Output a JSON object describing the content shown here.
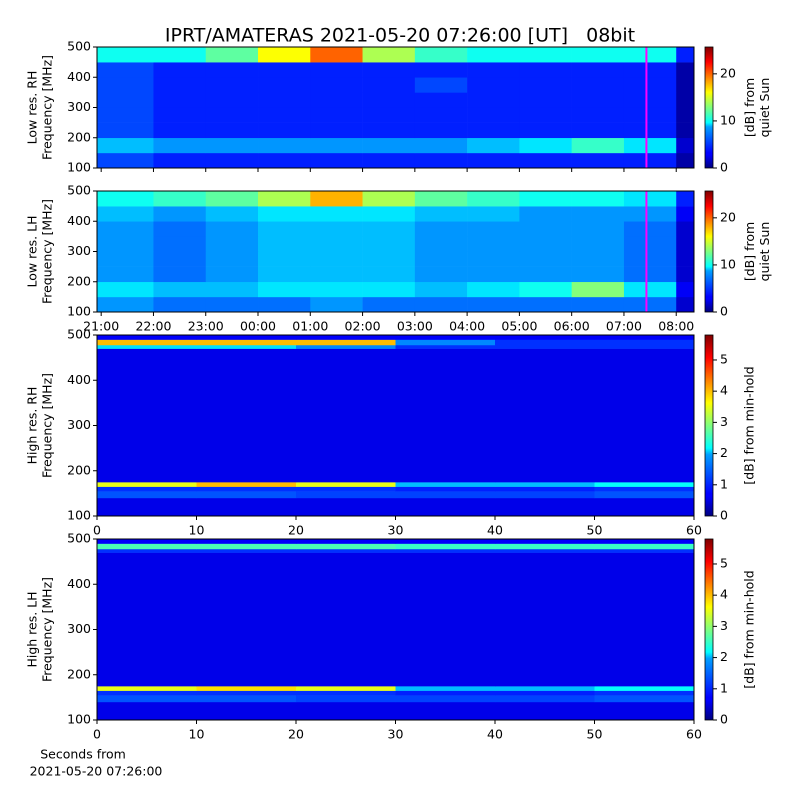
{
  "chart_data": [
    {
      "type": "heatmap",
      "title": "IPRT/AMATERAS 2021-05-20 07:26:00 [UT]   08bit",
      "ylabel": [
        "Low res. RH",
        "Frequency [MHz]"
      ],
      "colorbar_label": [
        "[dB] from",
        "quiet Sun"
      ],
      "xlim": [
        20.92,
        32.34
      ],
      "xticks": [
        21,
        22,
        23,
        24,
        25,
        26,
        27,
        28,
        29,
        30,
        31,
        32
      ],
      "xticklabels": false,
      "ylim": [
        100,
        500
      ],
      "yticks": [
        100,
        200,
        300,
        400,
        500
      ],
      "clim": [
        0,
        25.7
      ],
      "cticks": [
        0,
        10,
        20
      ],
      "colormap": "jet",
      "xbins": [
        20.92,
        22,
        23,
        24,
        25,
        26,
        27,
        28,
        29,
        30,
        31,
        32,
        32.34
      ],
      "ybins": [
        100,
        150,
        200,
        250,
        300,
        350,
        400,
        450,
        500
      ],
      "z": [
        [
          5,
          4,
          4,
          4,
          4,
          4,
          4,
          4,
          4,
          4,
          4,
          1
        ],
        [
          8,
          7,
          7,
          7,
          7,
          7,
          7,
          8,
          9,
          11,
          9,
          2
        ],
        [
          5,
          4,
          4,
          4,
          4,
          4,
          4,
          4,
          4,
          4,
          4,
          1
        ],
        [
          5,
          4,
          4,
          4,
          4,
          4,
          4,
          4,
          4,
          4,
          4,
          1
        ],
        [
          5,
          4,
          4,
          4,
          4,
          4,
          4,
          4,
          4,
          4,
          4,
          1
        ],
        [
          5,
          4,
          4,
          4,
          4,
          4,
          5,
          4,
          4,
          4,
          4,
          1
        ],
        [
          5,
          4,
          4,
          4,
          4,
          4,
          4,
          4,
          4,
          4,
          4,
          1
        ],
        [
          10,
          10,
          12,
          16,
          20,
          14,
          11,
          10,
          10,
          10,
          10,
          4
        ]
      ],
      "vlines": [
        31.43
      ],
      "vline_color": "#ff00ff"
    },
    {
      "type": "heatmap",
      "ylabel": [
        "Low res. LH",
        "Frequency [MHz]"
      ],
      "colorbar_label": [
        "[dB] from",
        "quiet Sun"
      ],
      "xlim": [
        20.92,
        32.34
      ],
      "xticks": [
        {
          "value": 21,
          "label": "21:00"
        },
        {
          "value": 22,
          "label": "22:00"
        },
        {
          "value": 23,
          "label": "23:00"
        },
        {
          "value": 24,
          "label": "00:00"
        },
        {
          "value": 25,
          "label": "01:00"
        },
        {
          "value": 26,
          "label": "02:00"
        },
        {
          "value": 27,
          "label": "03:00"
        },
        {
          "value": 28,
          "label": "04:00"
        },
        {
          "value": 29,
          "label": "05:00"
        },
        {
          "value": 30,
          "label": "06:00"
        },
        {
          "value": 31,
          "label": "07:00"
        },
        {
          "value": 32,
          "label": "08:00"
        }
      ],
      "ylim": [
        100,
        500
      ],
      "yticks": [
        100,
        200,
        300,
        400,
        500
      ],
      "clim": [
        0,
        25.7
      ],
      "cticks": [
        0,
        10,
        20
      ],
      "colormap": "jet",
      "xbins": [
        20.92,
        22,
        23,
        24,
        25,
        26,
        27,
        28,
        29,
        30,
        31,
        32,
        32.34
      ],
      "ybins": [
        100,
        150,
        200,
        250,
        300,
        350,
        400,
        450,
        500
      ],
      "z": [
        [
          7,
          6,
          6,
          6,
          7,
          6,
          6,
          6,
          6,
          6,
          6,
          2
        ],
        [
          9,
          8,
          8,
          9,
          9,
          9,
          8,
          9,
          10,
          13,
          9,
          3
        ],
        [
          7,
          6,
          7,
          8,
          8,
          8,
          7,
          7,
          7,
          7,
          6,
          2
        ],
        [
          7,
          6,
          7,
          8,
          8,
          8,
          7,
          7,
          7,
          7,
          6,
          2
        ],
        [
          7,
          6,
          7,
          8,
          8,
          8,
          7,
          7,
          7,
          7,
          6,
          2
        ],
        [
          7,
          6,
          7,
          8,
          8,
          8,
          7,
          7,
          7,
          7,
          6,
          2
        ],
        [
          8,
          7,
          8,
          9,
          9,
          9,
          8,
          8,
          7,
          7,
          7,
          3
        ],
        [
          10,
          11,
          12,
          14,
          18,
          14,
          12,
          11,
          10,
          10,
          9,
          4
        ]
      ],
      "vlines": [
        31.43
      ],
      "vline_color": "#ff00ff"
    },
    {
      "type": "heatmap",
      "ylabel": [
        "High res. RH",
        "Frequency [MHz]"
      ],
      "colorbar_label": [
        "[dB] from min-hold"
      ],
      "xlim": [
        0,
        60
      ],
      "xticks": [
        0,
        10,
        20,
        30,
        40,
        50,
        60
      ],
      "ylim": [
        100,
        500
      ],
      "yticks": [
        100,
        200,
        300,
        400,
        500
      ],
      "clim": [
        0,
        5.8
      ],
      "cticks": [
        0,
        1,
        2,
        3,
        4,
        5
      ],
      "colormap": "jet",
      "xbins": [
        0,
        10,
        20,
        30,
        40,
        50,
        60
      ],
      "ybins": [
        100,
        140,
        155,
        165,
        175,
        470,
        478,
        490,
        500
      ],
      "z": [
        [
          0.6,
          0.6,
          0.6,
          0.6,
          0.6,
          0.6
        ],
        [
          1.2,
          1.2,
          1.1,
          1.1,
          1.1,
          1.2
        ],
        [
          1,
          1,
          1,
          0.9,
          0.9,
          1
        ],
        [
          3.5,
          4,
          3.5,
          1.8,
          1.8,
          2.2
        ],
        [
          0.6,
          0.6,
          0.6,
          0.6,
          0.6,
          0.6
        ],
        [
          2,
          2,
          1.5,
          1,
          1,
          1
        ],
        [
          4,
          4,
          4,
          1.5,
          1,
          1
        ],
        [
          0.7,
          0.7,
          0.7,
          0.7,
          0.7,
          0.7
        ]
      ]
    },
    {
      "type": "heatmap",
      "ylabel": [
        "High res. LH",
        "Frequency [MHz]"
      ],
      "colorbar_label": [
        "[dB] from min-hold"
      ],
      "xlabel": [
        "Seconds from",
        "2021-05-20 07:26:00"
      ],
      "xlim": [
        0,
        60
      ],
      "xticks": [
        0,
        10,
        20,
        30,
        40,
        50,
        60
      ],
      "ylim": [
        100,
        500
      ],
      "yticks": [
        100,
        200,
        300,
        400,
        500
      ],
      "clim": [
        0,
        5.8
      ],
      "cticks": [
        0,
        1,
        2,
        3,
        4,
        5
      ],
      "colormap": "jet",
      "xbins": [
        0,
        10,
        20,
        30,
        40,
        50,
        60
      ],
      "ybins": [
        100,
        140,
        155,
        165,
        175,
        470,
        478,
        490,
        500
      ],
      "z": [
        [
          0.6,
          0.6,
          0.6,
          0.6,
          0.6,
          0.6
        ],
        [
          1.2,
          1.2,
          1.1,
          1.1,
          1.1,
          1.2
        ],
        [
          1,
          1,
          1,
          0.9,
          0.9,
          1
        ],
        [
          3.5,
          3.8,
          3.5,
          1.8,
          1.8,
          2.2
        ],
        [
          0.6,
          0.6,
          0.6,
          0.6,
          0.6,
          0.6
        ],
        [
          1,
          1,
          1,
          1,
          1,
          1
        ],
        [
          2.6,
          2.6,
          2.6,
          2.5,
          2.5,
          2.5
        ],
        [
          0.7,
          0.7,
          0.7,
          0.7,
          0.7,
          0.7
        ]
      ]
    }
  ]
}
